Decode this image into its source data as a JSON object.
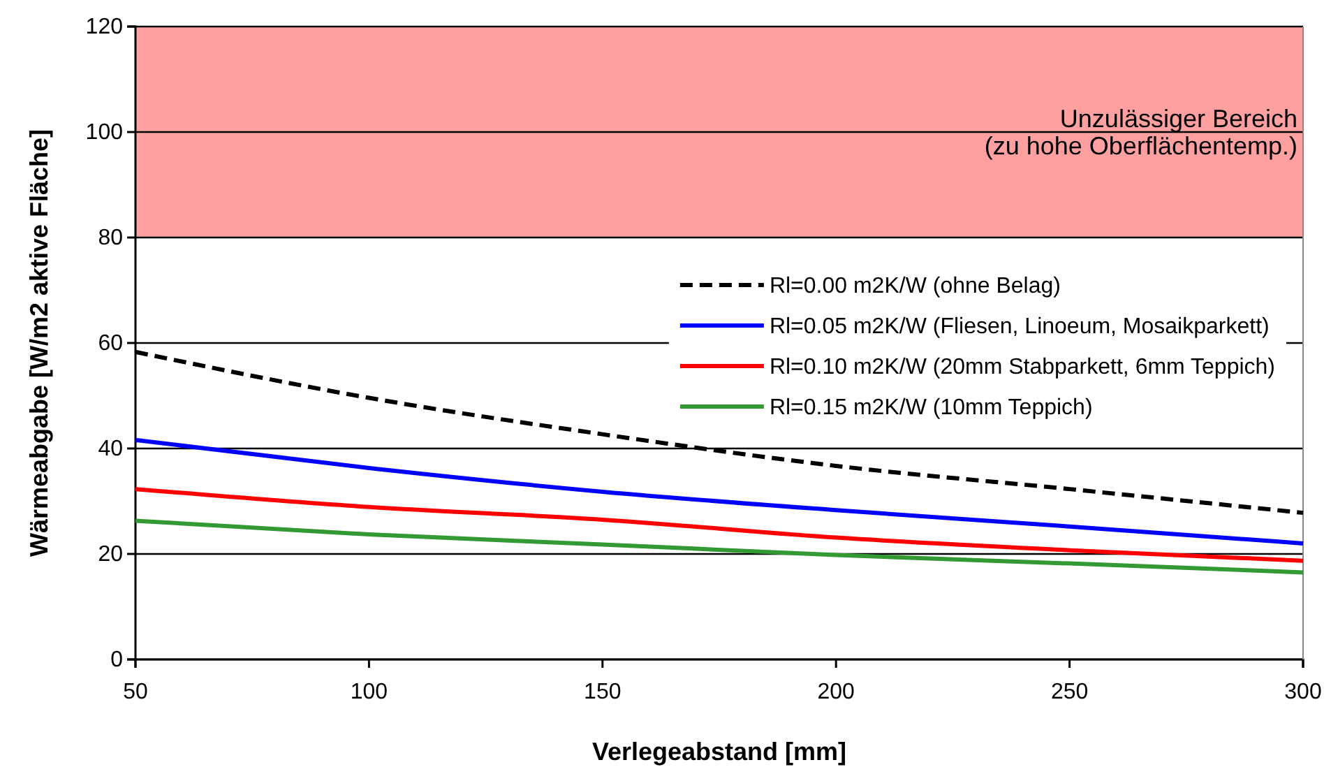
{
  "chart_data": {
    "type": "line",
    "xlabel": "Verlegeabstand [mm]",
    "ylabel": "Wärmeabgabe [W/m2 aktive Fläche]",
    "x": [
      50,
      100,
      150,
      200,
      250,
      300
    ],
    "series": [
      {
        "name": "Rl=0.00 m2K/W (ohne Belag)",
        "color": "#000000",
        "line_style": "dashed",
        "values": [
          58.3,
          49.6,
          42.7,
          36.7,
          32.3,
          27.8
        ]
      },
      {
        "name": "Rl=0.05 m2K/W (Fliesen, Linoeum, Mosaikparkett)",
        "color": "#0000ff",
        "values": [
          41.6,
          36.3,
          31.8,
          28.3,
          25.2,
          22.0
        ]
      },
      {
        "name": "Rl=0.10 m2K/W (20mm Stabparkett, 6mm Teppich)",
        "color": "#ff0000",
        "values": [
          32.3,
          28.9,
          26.5,
          23.1,
          20.7,
          18.7
        ]
      },
      {
        "name": "Rl=0.15 m2K/W (10mm Teppich)",
        "color": "#339933",
        "values": [
          26.3,
          23.7,
          21.8,
          19.8,
          18.2,
          16.5
        ]
      }
    ],
    "xlim": [
      50,
      300
    ],
    "xticks": [
      50,
      100,
      150,
      200,
      250,
      300
    ],
    "ylim": [
      0,
      120
    ],
    "yticks": [
      0,
      20,
      40,
      60,
      80,
      100,
      120
    ],
    "grid": "y",
    "legend": "right",
    "marker": "none",
    "bands": [
      {
        "axis": "y",
        "from": 80,
        "to": 120,
        "label": "Unzulässiger Bereich\n(zu hohe Oberflächentemp.)",
        "color": "#ffa0a0"
      }
    ]
  }
}
